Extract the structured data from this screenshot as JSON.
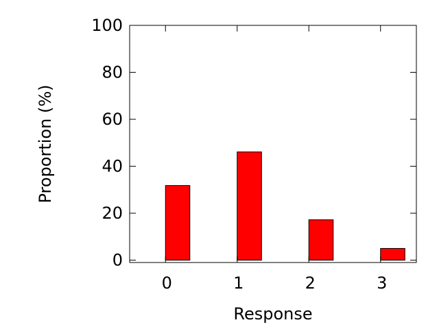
{
  "chart_data": {
    "type": "bar",
    "title": "",
    "xlabel": "Response",
    "ylabel": "Proportion (%)",
    "categories": [
      "0",
      "1",
      "2",
      "3"
    ],
    "x": [
      0,
      1,
      2,
      3
    ],
    "values": [
      31.8,
      46.1,
      17.2,
      5.0
    ],
    "xlim": [
      -0.5,
      3.5
    ],
    "ylim": [
      -1,
      100
    ],
    "yticks": [
      0,
      20,
      40,
      60,
      80,
      100
    ],
    "xticks": [
      0,
      1,
      2,
      3
    ],
    "bar_color": "#ff0000",
    "bar_width": 0.34,
    "grid": false,
    "legend": "none"
  }
}
